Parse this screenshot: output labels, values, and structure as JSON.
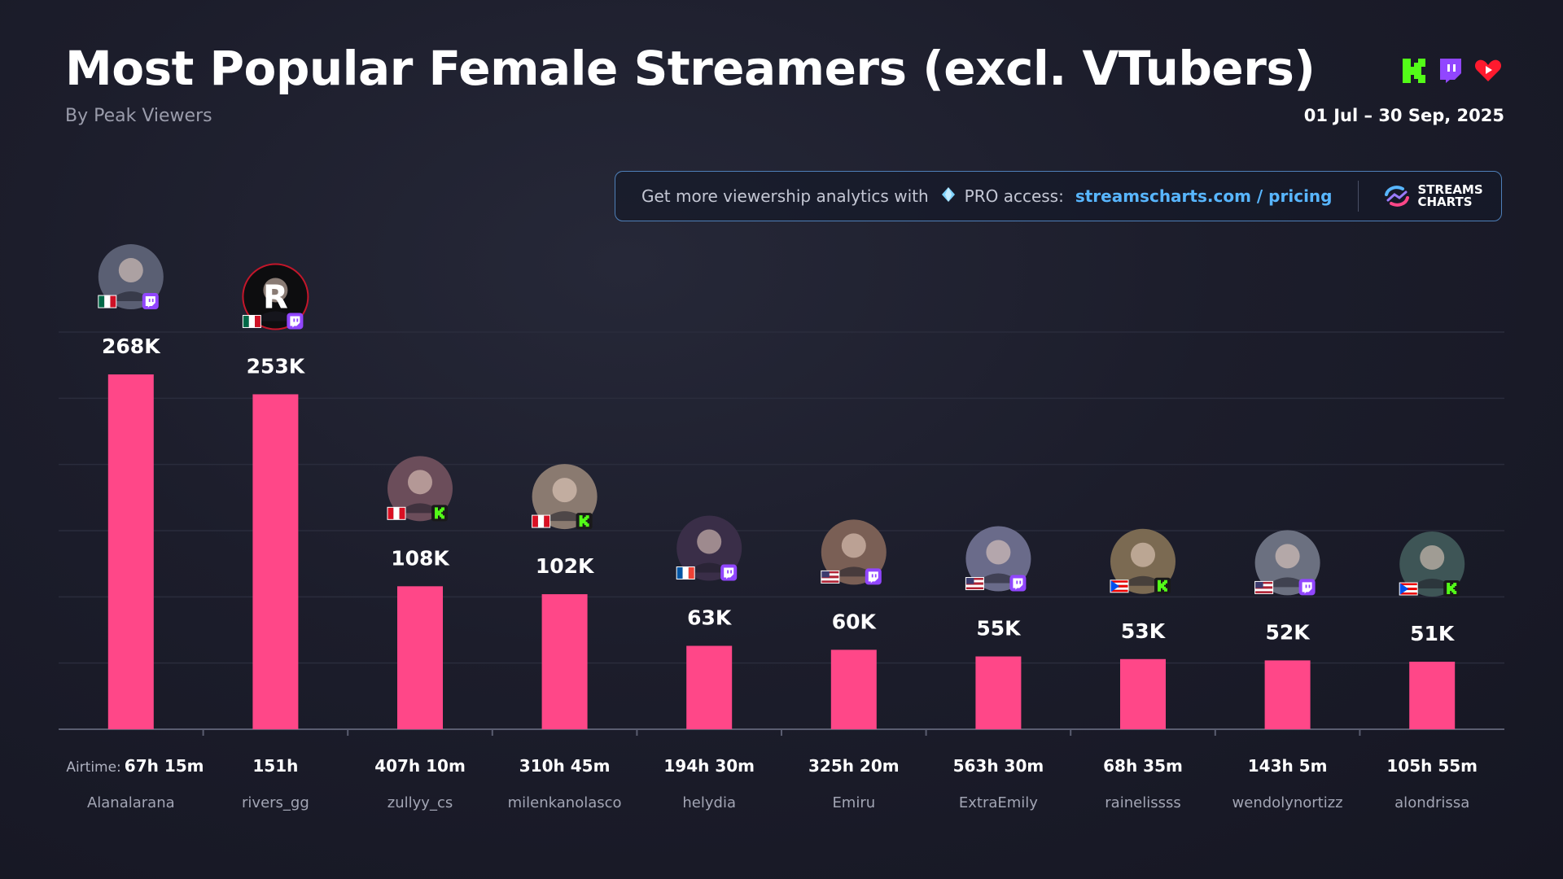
{
  "header": {
    "title": "Most Popular Female Streamers (excl. VTubers)",
    "subtitle": "By Peak Viewers",
    "date_range": "01 Jul – 30 Sep, 2025",
    "platform_icons": [
      "kick-icon",
      "twitch-icon",
      "youtube-icon"
    ]
  },
  "promo": {
    "text": "Get more viewership analytics with",
    "pro_label": "PRO access:",
    "link_site": "streamscharts.com",
    "link_sep": "/",
    "link_page": "pricing",
    "brand_line1": "STREAMS",
    "brand_line2": "CHARTS"
  },
  "colors": {
    "bar": "#ff4788",
    "kick": "#53fc18",
    "twitch": "#9146ff",
    "youtube": "#ff0000",
    "link": "#58b6ff"
  },
  "airtime_prefix": "Airtime:",
  "chart_data": {
    "type": "bar",
    "title": "Most Popular Female Streamers (excl. VTubers)",
    "subtitle": "By Peak Viewers",
    "ylim": [
      0,
      300000
    ],
    "grid": true,
    "categories": [
      "Alanalarana",
      "rivers_gg",
      "zullyy_cs",
      "milenkanolasco",
      "helydia",
      "Emiru",
      "ExtraEmily",
      "rainelissss",
      "wendolynortizz",
      "alondrissa"
    ],
    "values": [
      268000,
      253000,
      108000,
      102000,
      63000,
      60000,
      55000,
      53000,
      52000,
      51000
    ],
    "value_labels": [
      "268K",
      "253K",
      "108K",
      "102K",
      "63K",
      "60K",
      "55K",
      "53K",
      "52K",
      "51K"
    ],
    "airtime": [
      "67h 15m",
      "151h",
      "407h 10m",
      "310h 45m",
      "194h 30m",
      "325h 20m",
      "563h 30m",
      "68h 35m",
      "143h 5m",
      "105h 55m"
    ],
    "platform": [
      "twitch",
      "twitch",
      "kick",
      "kick",
      "twitch",
      "twitch",
      "twitch",
      "kick",
      "twitch",
      "kick"
    ],
    "country": [
      "Mexico",
      "Mexico",
      "Peru",
      "Peru",
      "France",
      "United States",
      "United States",
      "Puerto Rico",
      "United States",
      "Puerto Rico"
    ]
  }
}
